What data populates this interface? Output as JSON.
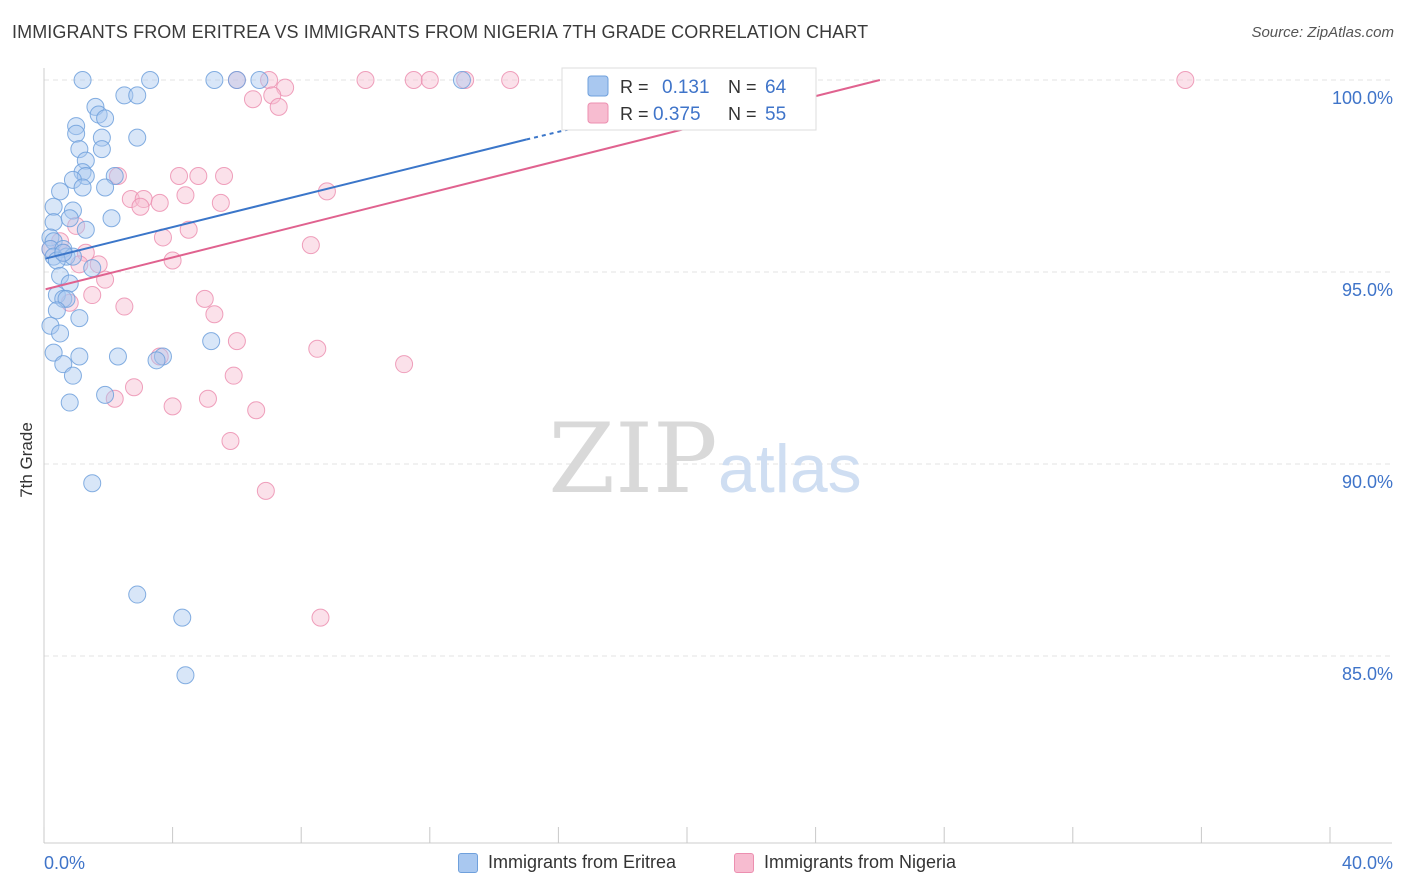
{
  "title": "IMMIGRANTS FROM ERITREA VS IMMIGRANTS FROM NIGERIA 7TH GRADE CORRELATION CHART",
  "source": "Source: ZipAtlas.com",
  "watermark": {
    "zip": "ZIP",
    "atlas": "atlas"
  },
  "colors": {
    "eritrea_fill": "#a9c8f0",
    "eritrea_stroke": "#6fa0dc",
    "eritrea_line": "#3b76c9",
    "nigeria_fill": "#f7bcd0",
    "nigeria_stroke": "#ec8fb0",
    "nigeria_line": "#e0628f",
    "tick_label": "#3f74c9",
    "grid": "#e3e3e3"
  },
  "legend": {
    "r_label": "R =",
    "n_label": "N =",
    "eritrea": {
      "r": "0.131",
      "n": "64"
    },
    "nigeria": {
      "r": "0.375",
      "n": "55"
    }
  },
  "chart_data": {
    "type": "scatter",
    "title": "IMMIGRANTS FROM ERITREA VS IMMIGRANTS FROM NIGERIA 7TH GRADE CORRELATION CHART",
    "xlabel": "",
    "ylabel": "7th Grade",
    "xlim": [
      0,
      40
    ],
    "ylim": [
      80.5,
      101.0
    ],
    "x_tick_labels": [
      "0.0%",
      "40.0%"
    ],
    "y_ticks": [
      100,
      95,
      90,
      85
    ],
    "y_tick_labels": [
      "100.0%",
      "95.0%",
      "90.0%",
      "85.0%"
    ],
    "grid": "horizontal dashed",
    "legend_position": "top-center",
    "series": [
      {
        "name": "Immigrants from Eritrea",
        "trend": {
          "x": [
            0.05,
            15.0
          ],
          "y": [
            95.35,
            98.45
          ],
          "dashed_to": [
            17.0,
            98.85
          ]
        },
        "points": [
          [
            1.2,
            100.0
          ],
          [
            3.3,
            100.0
          ],
          [
            5.3,
            100.0
          ],
          [
            6.0,
            100.0
          ],
          [
            6.7,
            100.0
          ],
          [
            13.0,
            100.0
          ],
          [
            1.6,
            99.3
          ],
          [
            2.5,
            99.6
          ],
          [
            2.9,
            99.6
          ],
          [
            1.7,
            99.1
          ],
          [
            1.9,
            99.0
          ],
          [
            1.0,
            98.8
          ],
          [
            1.0,
            98.6
          ],
          [
            1.8,
            98.5
          ],
          [
            2.9,
            98.5
          ],
          [
            1.1,
            98.2
          ],
          [
            1.8,
            98.2
          ],
          [
            1.3,
            97.9
          ],
          [
            1.2,
            97.6
          ],
          [
            1.3,
            97.5
          ],
          [
            2.2,
            97.5
          ],
          [
            0.9,
            97.4
          ],
          [
            1.2,
            97.2
          ],
          [
            0.5,
            97.1
          ],
          [
            1.9,
            97.2
          ],
          [
            0.3,
            96.7
          ],
          [
            0.9,
            96.6
          ],
          [
            0.3,
            96.3
          ],
          [
            0.8,
            96.4
          ],
          [
            2.1,
            96.4
          ],
          [
            1.3,
            96.1
          ],
          [
            0.2,
            95.9
          ],
          [
            0.3,
            95.8
          ],
          [
            0.2,
            95.6
          ],
          [
            0.6,
            95.6
          ],
          [
            0.3,
            95.4
          ],
          [
            0.7,
            95.4
          ],
          [
            0.9,
            95.4
          ],
          [
            0.4,
            95.3
          ],
          [
            1.5,
            95.1
          ],
          [
            0.5,
            94.9
          ],
          [
            0.8,
            94.7
          ],
          [
            0.4,
            94.4
          ],
          [
            0.6,
            94.3
          ],
          [
            0.7,
            94.3
          ],
          [
            0.4,
            94.0
          ],
          [
            1.1,
            93.8
          ],
          [
            0.2,
            93.6
          ],
          [
            0.5,
            93.4
          ],
          [
            5.2,
            93.2
          ],
          [
            0.3,
            92.9
          ],
          [
            1.1,
            92.8
          ],
          [
            3.7,
            92.8
          ],
          [
            3.5,
            92.7
          ],
          [
            0.6,
            92.6
          ],
          [
            0.9,
            92.3
          ],
          [
            1.9,
            91.8
          ],
          [
            0.8,
            91.6
          ],
          [
            1.5,
            89.5
          ],
          [
            2.9,
            86.6
          ],
          [
            4.3,
            86.0
          ],
          [
            4.4,
            84.5
          ],
          [
            2.3,
            92.8
          ],
          [
            0.6,
            95.5
          ]
        ]
      },
      {
        "name": "Immigrants from Nigeria",
        "trend": {
          "x": [
            0.05,
            26.0
          ],
          "y": [
            94.55,
            100.0
          ]
        },
        "points": [
          [
            6.0,
            100.0
          ],
          [
            7.0,
            100.0
          ],
          [
            10.0,
            100.0
          ],
          [
            11.5,
            100.0
          ],
          [
            12.0,
            100.0
          ],
          [
            13.1,
            100.0
          ],
          [
            14.5,
            100.0
          ],
          [
            16.5,
            100.0
          ],
          [
            17.0,
            100.0
          ],
          [
            35.5,
            100.0
          ],
          [
            7.5,
            99.8
          ],
          [
            7.1,
            99.6
          ],
          [
            6.5,
            99.5
          ],
          [
            7.3,
            99.3
          ],
          [
            2.3,
            97.5
          ],
          [
            4.2,
            97.5
          ],
          [
            4.8,
            97.5
          ],
          [
            5.6,
            97.5
          ],
          [
            8.8,
            97.1
          ],
          [
            4.4,
            97.0
          ],
          [
            2.7,
            96.9
          ],
          [
            3.1,
            96.9
          ],
          [
            3.6,
            96.8
          ],
          [
            3.0,
            96.7
          ],
          [
            5.5,
            96.8
          ],
          [
            1.0,
            96.2
          ],
          [
            4.5,
            96.1
          ],
          [
            3.7,
            95.9
          ],
          [
            0.5,
            95.8
          ],
          [
            0.2,
            95.6
          ],
          [
            8.3,
            95.7
          ],
          [
            1.3,
            95.5
          ],
          [
            0.6,
            95.5
          ],
          [
            4.0,
            95.3
          ],
          [
            1.1,
            95.2
          ],
          [
            1.7,
            95.2
          ],
          [
            1.9,
            94.8
          ],
          [
            1.5,
            94.4
          ],
          [
            0.8,
            94.2
          ],
          [
            5.0,
            94.3
          ],
          [
            2.5,
            94.1
          ],
          [
            5.3,
            93.9
          ],
          [
            6.0,
            93.2
          ],
          [
            8.5,
            93.0
          ],
          [
            11.2,
            92.6
          ],
          [
            3.6,
            92.8
          ],
          [
            5.9,
            92.3
          ],
          [
            2.8,
            92.0
          ],
          [
            5.1,
            91.7
          ],
          [
            2.2,
            91.7
          ],
          [
            4.0,
            91.5
          ],
          [
            6.6,
            91.4
          ],
          [
            5.8,
            90.6
          ],
          [
            6.9,
            89.3
          ],
          [
            8.6,
            86.0
          ]
        ]
      }
    ]
  }
}
